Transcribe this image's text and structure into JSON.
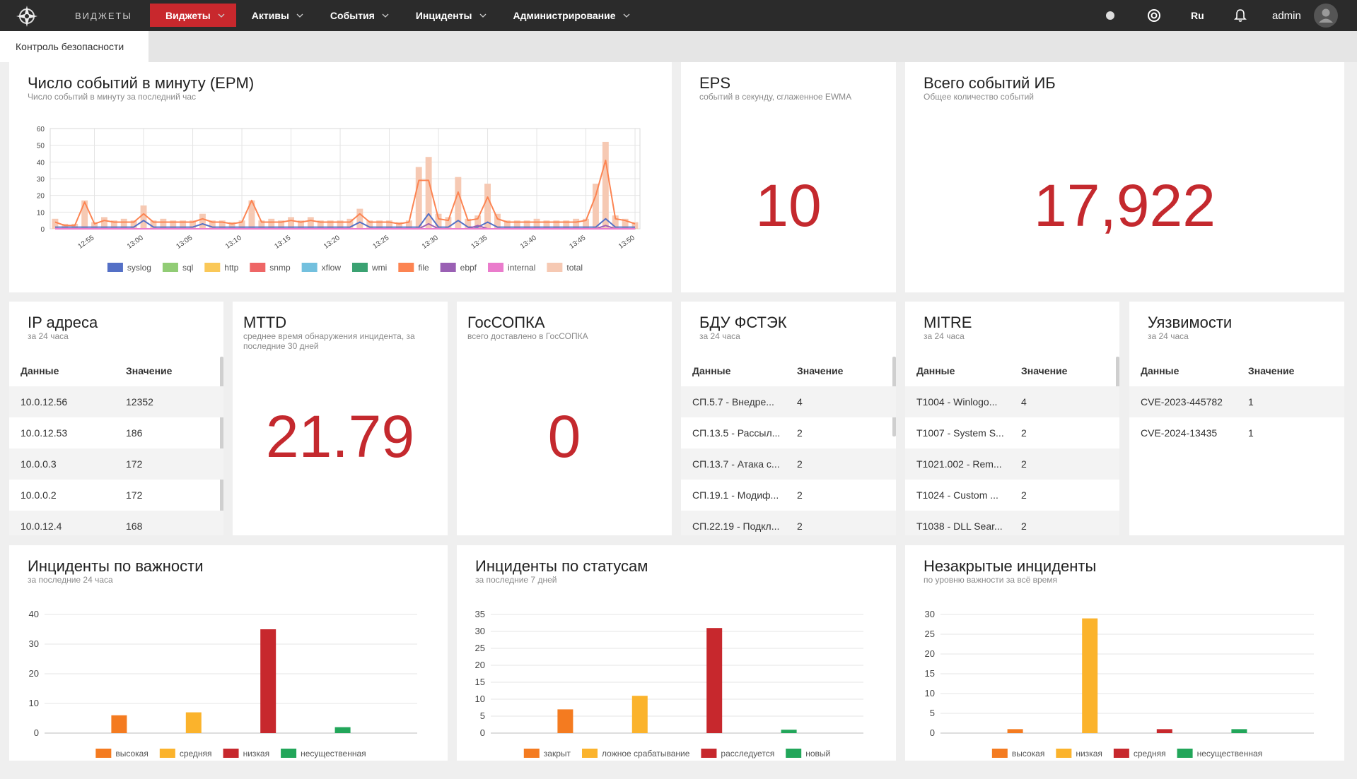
{
  "nav": {
    "logo": "ВИДЖЕТЫ",
    "menu": [
      "Виджеты",
      "Активы",
      "События",
      "Инциденты",
      "Администрирование"
    ],
    "lang": "Ru",
    "user": "admin"
  },
  "tab": "Контроль безопасности",
  "stats": [
    {
      "title": "EPS",
      "subtitle": "событий в секунду, сглаженное EWMA",
      "value": "10"
    },
    {
      "title": "Всего событий ИБ",
      "subtitle": "Общее количество событий",
      "value": "17,922"
    },
    {
      "title": "MTTD",
      "subtitle": "среднее время обнаружения инцидента, за последние 30 дней",
      "value": "21.79"
    },
    {
      "title": "ГосСОПКА",
      "subtitle": "всего доставлено в ГосСОПКА",
      "value": "0"
    }
  ],
  "tables": [
    {
      "title": "IP адреса",
      "subtitle": "за 24 часа",
      "columns": [
        "Данные",
        "Значение"
      ],
      "rows": [
        [
          "10.0.12.56",
          "12352"
        ],
        [
          "10.0.12.53",
          "186"
        ],
        [
          "10.0.0.3",
          "172"
        ],
        [
          "10.0.0.2",
          "172"
        ],
        [
          "10.0.12.4",
          "168"
        ]
      ]
    },
    {
      "title": "БДУ ФСТЭК",
      "subtitle": "за 24 часа",
      "columns": [
        "Данные",
        "Значение"
      ],
      "rows": [
        [
          "СП.5.7 - Внедре...",
          "4"
        ],
        [
          "СП.13.5 - Рассыл...",
          "2"
        ],
        [
          "СП.13.7 - Атака с...",
          "2"
        ],
        [
          "СП.19.1 - Модиф...",
          "2"
        ],
        [
          "СП.22.19 - Подкл...",
          "2"
        ]
      ]
    },
    {
      "title": "MITRE",
      "subtitle": "за 24 часа",
      "columns": [
        "Данные",
        "Значение"
      ],
      "rows": [
        [
          "T1004 - Winlogo...",
          "4"
        ],
        [
          "T1007 - System S...",
          "2"
        ],
        [
          "T1021.002 - Rem...",
          "2"
        ],
        [
          "T1024 - Custom ...",
          "2"
        ],
        [
          "T1038 - DLL Sear...",
          "2"
        ]
      ]
    },
    {
      "title": "Уязвимости",
      "subtitle": "за 24 часа",
      "columns": [
        "Данные",
        "Значение"
      ],
      "rows": [
        [
          "CVE-2023-445782",
          "1"
        ],
        [
          "CVE-2024-13435",
          "1"
        ]
      ]
    }
  ],
  "chart_data": [
    {
      "type": "line",
      "title": "Число событий в минуту (EPM)",
      "subtitle": "Число событий в минуту за последний час",
      "categories": [
        null,
        null,
        null,
        null,
        "12:55",
        null,
        null,
        null,
        null,
        "13:00",
        null,
        null,
        null,
        null,
        "13:05",
        null,
        null,
        null,
        null,
        "13:10",
        null,
        null,
        null,
        null,
        "13:15",
        null,
        null,
        null,
        null,
        "13:20",
        null,
        null,
        null,
        null,
        "13:25",
        null,
        null,
        null,
        null,
        "13:30",
        null,
        null,
        null,
        null,
        "13:35",
        null,
        null,
        null,
        null,
        "13:40",
        null,
        null,
        null,
        null,
        "13:45",
        null,
        null,
        null,
        null,
        "13:50"
      ],
      "ylim": [
        0,
        60
      ],
      "yticks": [
        0,
        10,
        20,
        30,
        40,
        50,
        60
      ],
      "grid": true,
      "series": [
        {
          "name": "syslog",
          "color": "#5470c6",
          "values": [
            1,
            1,
            1,
            1,
            1,
            1,
            1,
            1,
            1,
            5,
            1,
            1,
            1,
            1,
            1,
            3,
            1,
            1,
            1,
            1,
            1,
            1,
            1,
            1,
            1,
            1,
            1,
            1,
            1,
            1,
            1,
            4,
            1,
            1,
            1,
            1,
            1,
            1,
            9,
            1,
            1,
            5,
            1,
            1,
            4,
            1,
            1,
            1,
            1,
            1,
            1,
            1,
            1,
            1,
            1,
            1,
            6,
            1,
            1,
            1
          ]
        },
        {
          "name": "sql",
          "color": "#91cc75",
          "values": [
            0,
            0,
            0,
            0,
            0,
            0,
            0,
            0,
            0,
            0,
            0,
            0,
            0,
            0,
            0,
            0,
            0,
            0,
            0,
            0,
            0,
            0,
            0,
            0,
            0,
            0,
            0,
            0,
            0,
            0,
            0,
            0,
            0,
            0,
            0,
            0,
            0,
            0,
            0,
            0,
            0,
            0,
            0,
            0,
            0,
            0,
            0,
            0,
            0,
            0,
            0,
            0,
            0,
            0,
            0,
            0,
            0,
            0,
            0,
            0
          ]
        },
        {
          "name": "http",
          "color": "#fac858",
          "values": [
            0,
            0,
            0,
            0,
            0,
            0,
            0,
            0,
            0,
            0,
            0,
            0,
            0,
            0,
            0,
            0,
            0,
            0,
            0,
            0,
            0,
            0,
            0,
            0,
            0,
            0,
            0,
            0,
            0,
            0,
            0,
            0,
            0,
            0,
            0,
            0,
            0,
            0,
            0,
            0,
            0,
            0,
            0,
            0,
            0,
            0,
            0,
            0,
            0,
            0,
            0,
            0,
            0,
            0,
            0,
            0,
            0,
            0,
            0,
            0
          ]
        },
        {
          "name": "snmp",
          "color": "#ee6666",
          "values": [
            0,
            0,
            0,
            0,
            0,
            0,
            0,
            0,
            0,
            0,
            0,
            0,
            0,
            0,
            0,
            0,
            0,
            0,
            0,
            0,
            0,
            0,
            0,
            0,
            0,
            0,
            0,
            0,
            0,
            0,
            0,
            0,
            0,
            0,
            0,
            0,
            0,
            0,
            0,
            0,
            0,
            0,
            0,
            0,
            0,
            0,
            0,
            0,
            0,
            0,
            0,
            0,
            0,
            0,
            0,
            0,
            0,
            0,
            0,
            0
          ]
        },
        {
          "name": "xflow",
          "color": "#73c0de",
          "values": [
            0,
            0,
            0,
            0,
            0,
            0,
            0,
            0,
            0,
            0,
            0,
            0,
            0,
            0,
            0,
            0,
            0,
            0,
            0,
            0,
            0,
            0,
            0,
            0,
            0,
            0,
            0,
            0,
            0,
            0,
            0,
            0,
            0,
            0,
            0,
            0,
            0,
            0,
            0,
            0,
            0,
            0,
            0,
            0,
            0,
            0,
            0,
            0,
            0,
            0,
            0,
            0,
            0,
            0,
            0,
            0,
            0,
            0,
            0,
            0
          ]
        },
        {
          "name": "wmi",
          "color": "#3ba272",
          "values": [
            0,
            0,
            0,
            0,
            0,
            0,
            0,
            0,
            0,
            0,
            0,
            0,
            0,
            0,
            0,
            0,
            0,
            0,
            0,
            0,
            0,
            0,
            0,
            0,
            0,
            0,
            0,
            0,
            0,
            0,
            0,
            0,
            0,
            0,
            0,
            0,
            0,
            0,
            0,
            0,
            0,
            0,
            0,
            0,
            0,
            0,
            0,
            0,
            0,
            0,
            0,
            0,
            0,
            0,
            0,
            0,
            0,
            0,
            0,
            0
          ]
        },
        {
          "name": "file",
          "color": "#fc8452",
          "values": [
            4,
            2,
            2,
            16,
            3,
            5,
            4,
            4,
            4,
            9,
            4,
            4,
            4,
            4,
            4,
            6,
            4,
            4,
            3,
            4,
            17,
            4,
            4,
            4,
            5,
            4,
            5,
            4,
            4,
            4,
            4,
            9,
            4,
            4,
            4,
            3,
            4,
            29,
            29,
            6,
            5,
            22,
            5,
            6,
            19,
            6,
            4,
            4,
            4,
            4,
            4,
            4,
            4,
            4,
            5,
            20,
            41,
            6,
            5,
            3
          ]
        },
        {
          "name": "ebpf",
          "color": "#9a60b4",
          "values": [
            0,
            0,
            0,
            0,
            0,
            0,
            0,
            0,
            0,
            0,
            0,
            0,
            0,
            0,
            0,
            0,
            0,
            0,
            0,
            0,
            0,
            0,
            0,
            0,
            0,
            0,
            0,
            0,
            0,
            0,
            0,
            0,
            0,
            0,
            0,
            0,
            0,
            0,
            3,
            0,
            0,
            0,
            0,
            2,
            0,
            0,
            0,
            0,
            0,
            0,
            0,
            0,
            0,
            0,
            0,
            0,
            2,
            0,
            0,
            0
          ]
        },
        {
          "name": "internal",
          "color": "#ea7ccc",
          "values": [
            0,
            0,
            0,
            0,
            0,
            0,
            0,
            0,
            0,
            0,
            0,
            0,
            0,
            0,
            0,
            0,
            0,
            0,
            0,
            0,
            0,
            0,
            0,
            0,
            0,
            0,
            0,
            0,
            0,
            0,
            0,
            0,
            0,
            0,
            0,
            0,
            0,
            0,
            0,
            0,
            0,
            0,
            0,
            0,
            0,
            0,
            0,
            0,
            0,
            0,
            0,
            0,
            0,
            0,
            0,
            0,
            0,
            0,
            0,
            0
          ]
        },
        {
          "name": "total",
          "color": "#f6c9b3",
          "style": "bar",
          "values": [
            6,
            3,
            3,
            17,
            4,
            7,
            5,
            6,
            5,
            14,
            5,
            6,
            5,
            5,
            5,
            9,
            5,
            5,
            4,
            5,
            17,
            5,
            6,
            5,
            7,
            5,
            7,
            5,
            5,
            5,
            6,
            12,
            5,
            5,
            5,
            4,
            5,
            37,
            43,
            9,
            7,
            31,
            6,
            8,
            27,
            9,
            5,
            5,
            5,
            6,
            5,
            5,
            5,
            6,
            6,
            27,
            52,
            8,
            6,
            4
          ]
        }
      ]
    },
    {
      "type": "bar",
      "title": "Инциденты по важности",
      "subtitle": "за последние 24 часа",
      "categories": [
        "высокая",
        "средняя",
        "низкая",
        "несущественная"
      ],
      "values": [
        6,
        7,
        35,
        2
      ],
      "colors": [
        "#f47b20",
        "#fbb32c",
        "#c7282d",
        "#22a65a"
      ],
      "ylim": [
        0,
        40
      ],
      "yticks": [
        0,
        10,
        20,
        30,
        40
      ],
      "grid": true
    },
    {
      "type": "bar",
      "title": "Инциденты по статусам",
      "subtitle": "за последние 7 дней",
      "categories": [
        "закрыт",
        "ложное срабатывание",
        "расследуется",
        "новый"
      ],
      "values": [
        7,
        11,
        31,
        1
      ],
      "colors": [
        "#f47b20",
        "#fbb32c",
        "#c7282d",
        "#22a65a"
      ],
      "ylim": [
        0,
        35
      ],
      "yticks": [
        0,
        5,
        10,
        15,
        20,
        25,
        30,
        35
      ],
      "grid": true
    },
    {
      "type": "bar",
      "title": "Незакрытые инциденты",
      "subtitle": "по уровню важности за всё время",
      "categories": [
        "высокая",
        "низкая",
        "средняя",
        "несущественная"
      ],
      "values": [
        1,
        29,
        1,
        1
      ],
      "colors": [
        "#f47b20",
        "#fbb32c",
        "#c7282d",
        "#22a65a"
      ],
      "ylim": [
        0,
        30
      ],
      "yticks": [
        0,
        5,
        10,
        15,
        20,
        25,
        30
      ],
      "grid": true
    }
  ]
}
